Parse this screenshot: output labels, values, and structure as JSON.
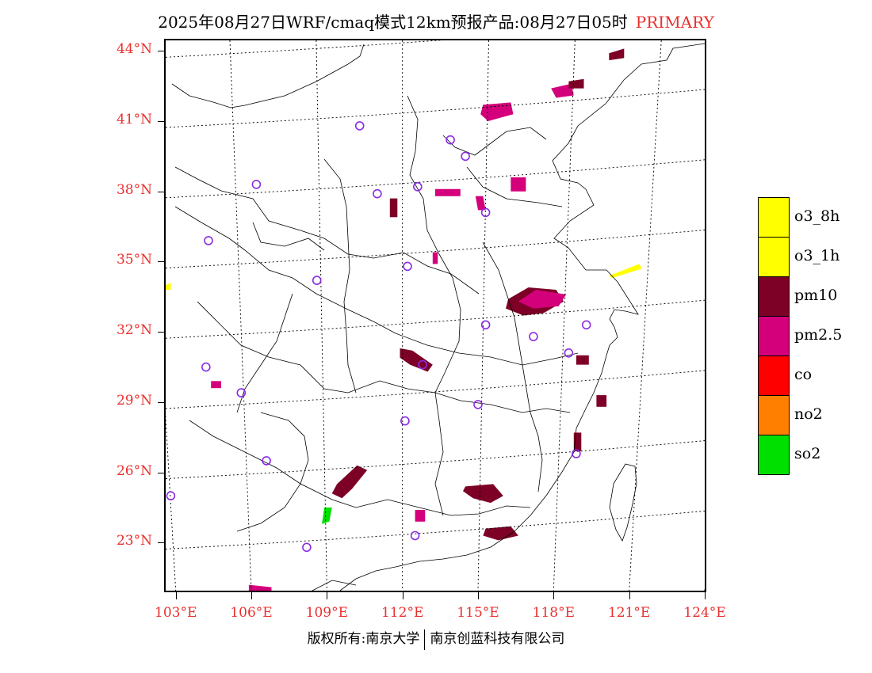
{
  "title": {
    "text": "2025年08月27日WRF/cmaq模式12km预报产品:08月27日05时",
    "tag": "PRIMARY",
    "tag_color": "#e8312f"
  },
  "map": {
    "lon_range": [
      102.6,
      124.0
    ],
    "lat_range": [
      20.95,
      44.45
    ],
    "lat_lines": [
      23,
      26,
      29,
      32,
      35,
      38,
      41,
      44
    ],
    "lon_lines": [
      103,
      106,
      109,
      112,
      115,
      118,
      121,
      124
    ],
    "lat_labels": [
      "23°N",
      "26°N",
      "29°N",
      "32°N",
      "35°N",
      "38°N",
      "41°N",
      "44°N"
    ],
    "lon_labels": [
      "103°E",
      "106°E",
      "109°E",
      "112°E",
      "115°E",
      "118°E",
      "121°E",
      "124°E"
    ],
    "axis_label_color": "#e8312f",
    "station_color": "#8a2be2",
    "stations": [
      [
        110.3,
        40.8
      ],
      [
        113.9,
        40.2
      ],
      [
        114.5,
        39.5
      ],
      [
        106.2,
        38.3
      ],
      [
        111.0,
        37.9
      ],
      [
        112.6,
        38.2
      ],
      [
        115.3,
        37.1
      ],
      [
        104.3,
        35.9
      ],
      [
        112.2,
        34.8
      ],
      [
        108.6,
        34.2
      ],
      [
        119.3,
        32.3
      ],
      [
        115.3,
        32.3
      ],
      [
        104.2,
        30.5
      ],
      [
        112.8,
        30.6
      ],
      [
        117.2,
        31.8
      ],
      [
        118.6,
        31.1
      ],
      [
        105.6,
        29.4
      ],
      [
        115.0,
        28.9
      ],
      [
        112.1,
        28.2
      ],
      [
        118.9,
        26.8
      ],
      [
        106.6,
        26.5
      ],
      [
        102.8,
        25.0
      ],
      [
        112.5,
        23.3
      ],
      [
        108.2,
        22.8
      ]
    ],
    "pollution_blobs": [
      {
        "species": "pm10",
        "points": [
          [
            116.2,
            33.4
          ],
          [
            117.0,
            33.9
          ],
          [
            118.1,
            33.8
          ],
          [
            118.4,
            33.3
          ],
          [
            117.6,
            32.8
          ],
          [
            116.8,
            32.7
          ],
          [
            116.1,
            33.0
          ]
        ]
      },
      {
        "species": "pm2.5",
        "points": [
          [
            116.6,
            33.3
          ],
          [
            117.3,
            33.8
          ],
          [
            118.5,
            33.6
          ],
          [
            118.2,
            33.1
          ],
          [
            117.2,
            33.0
          ]
        ]
      },
      {
        "species": "pm10",
        "points": [
          [
            111.9,
            31.3
          ],
          [
            112.4,
            31.2
          ],
          [
            113.2,
            30.6
          ],
          [
            113.0,
            30.3
          ],
          [
            112.3,
            30.6
          ],
          [
            111.9,
            30.9
          ]
        ]
      },
      {
        "species": "pm10",
        "points": [
          [
            114.5,
            25.4
          ],
          [
            115.6,
            25.5
          ],
          [
            116.0,
            25.0
          ],
          [
            115.5,
            24.7
          ],
          [
            114.8,
            24.9
          ],
          [
            114.4,
            25.2
          ]
        ]
      },
      {
        "species": "pm10",
        "points": [
          [
            115.3,
            23.6
          ],
          [
            116.3,
            23.7
          ],
          [
            116.6,
            23.3
          ],
          [
            115.8,
            23.1
          ],
          [
            115.2,
            23.3
          ]
        ]
      },
      {
        "species": "pm10",
        "points": [
          [
            109.4,
            25.5
          ],
          [
            110.2,
            26.3
          ],
          [
            110.6,
            26.1
          ],
          [
            110.0,
            25.3
          ],
          [
            109.6,
            24.9
          ],
          [
            109.2,
            25.1
          ]
        ]
      },
      {
        "species": "pm10",
        "points": [
          [
            111.5,
            37.7
          ],
          [
            111.8,
            37.7
          ],
          [
            111.8,
            36.9
          ],
          [
            111.5,
            36.9
          ]
        ]
      },
      {
        "species": "pm2.5",
        "points": [
          [
            113.3,
            38.1
          ],
          [
            114.3,
            38.1
          ],
          [
            114.3,
            37.8
          ],
          [
            113.3,
            37.8
          ]
        ]
      },
      {
        "species": "pm2.5",
        "points": [
          [
            114.9,
            37.8
          ],
          [
            115.2,
            37.8
          ],
          [
            115.3,
            37.2
          ],
          [
            115.0,
            37.2
          ]
        ]
      },
      {
        "species": "pm2.5",
        "points": [
          [
            116.3,
            38.6
          ],
          [
            116.9,
            38.6
          ],
          [
            116.9,
            38.0
          ],
          [
            116.3,
            38.0
          ]
        ]
      },
      {
        "species": "pm2.5",
        "points": [
          [
            115.2,
            41.7
          ],
          [
            116.3,
            41.8
          ],
          [
            116.4,
            41.3
          ],
          [
            115.4,
            41.0
          ],
          [
            115.1,
            41.3
          ]
        ]
      },
      {
        "species": "pm2.5",
        "points": [
          [
            117.9,
            42.4
          ],
          [
            118.7,
            42.6
          ],
          [
            118.8,
            42.1
          ],
          [
            118.1,
            42.0
          ]
        ]
      },
      {
        "species": "pm10",
        "points": [
          [
            118.6,
            42.7
          ],
          [
            119.2,
            42.8
          ],
          [
            119.2,
            42.4
          ],
          [
            118.6,
            42.4
          ]
        ]
      },
      {
        "species": "pm10",
        "points": [
          [
            120.2,
            43.9
          ],
          [
            120.8,
            44.1
          ],
          [
            120.8,
            43.7
          ],
          [
            120.2,
            43.6
          ]
        ]
      },
      {
        "species": "pm2.5",
        "points": [
          [
            113.2,
            35.4
          ],
          [
            113.4,
            35.4
          ],
          [
            113.4,
            34.9
          ],
          [
            113.2,
            34.9
          ]
        ]
      },
      {
        "species": "pm10",
        "points": [
          [
            118.9,
            31.0
          ],
          [
            119.4,
            31.0
          ],
          [
            119.4,
            30.6
          ],
          [
            118.9,
            30.6
          ]
        ]
      },
      {
        "species": "pm10",
        "points": [
          [
            119.7,
            29.3
          ],
          [
            120.1,
            29.3
          ],
          [
            120.1,
            28.8
          ],
          [
            119.7,
            28.8
          ]
        ]
      },
      {
        "species": "pm10",
        "points": [
          [
            118.8,
            27.7
          ],
          [
            119.1,
            27.7
          ],
          [
            119.1,
            26.9
          ],
          [
            118.8,
            26.9
          ]
        ]
      },
      {
        "species": "pm2.5",
        "points": [
          [
            112.5,
            24.4
          ],
          [
            112.9,
            24.4
          ],
          [
            112.9,
            23.9
          ],
          [
            112.5,
            23.9
          ]
        ]
      },
      {
        "species": "pm2.5",
        "points": [
          [
            104.4,
            29.9
          ],
          [
            104.8,
            29.9
          ],
          [
            104.8,
            29.6
          ],
          [
            104.4,
            29.6
          ]
        ]
      },
      {
        "species": "pm2.5",
        "points": [
          [
            105.9,
            21.2
          ],
          [
            106.8,
            21.1
          ],
          [
            106.8,
            20.9
          ],
          [
            105.9,
            20.9
          ]
        ]
      },
      {
        "species": "so2",
        "points": [
          [
            108.9,
            24.5
          ],
          [
            109.2,
            24.5
          ],
          [
            109.1,
            23.9
          ],
          [
            108.8,
            23.8
          ]
        ]
      },
      {
        "species": "o3_1h",
        "points": [
          [
            120.2,
            34.4
          ],
          [
            121.4,
            34.9
          ],
          [
            121.5,
            34.7
          ],
          [
            120.3,
            34.3
          ]
        ]
      },
      {
        "species": "o3_1h",
        "points": [
          [
            102.6,
            34.0
          ],
          [
            102.8,
            34.1
          ],
          [
            102.8,
            33.8
          ],
          [
            102.6,
            33.8
          ]
        ]
      }
    ]
  },
  "legend": {
    "items": [
      {
        "label": "o3_8h",
        "color": "#ffff00"
      },
      {
        "label": "o3_1h",
        "color": "#ffff00"
      },
      {
        "label": "pm10",
        "color": "#7d0026"
      },
      {
        "label": "pm2.5",
        "color": "#d4007b"
      },
      {
        "label": "co",
        "color": "#ff0000"
      },
      {
        "label": "no2",
        "color": "#ff7f00"
      },
      {
        "label": "so2",
        "color": "#00e000"
      }
    ]
  },
  "copyright": {
    "left": "版权所有:南京大学",
    "right": "南京创蓝科技有限公司"
  }
}
